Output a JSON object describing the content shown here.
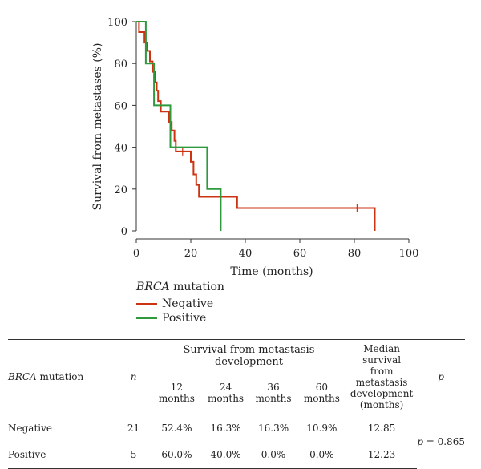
{
  "chart_data": {
    "type": "line",
    "subtype": "kaplan-meier",
    "xlabel": "Time (months)",
    "ylabel": "Survival from metastases (%)",
    "xlim": [
      0,
      100
    ],
    "ylim": [
      0,
      100
    ],
    "xticks": [
      0,
      20,
      40,
      60,
      80,
      100
    ],
    "yticks": [
      0,
      20,
      40,
      60,
      80,
      100
    ],
    "legend": {
      "title_italic": "BRCA",
      "title_rest": " mutation",
      "placement": "bottom-left"
    },
    "series": [
      {
        "name": "Negative",
        "color": "#cc3311",
        "steps": [
          [
            0,
            100
          ],
          [
            1,
            95
          ],
          [
            3,
            90
          ],
          [
            4,
            86
          ],
          [
            5,
            81
          ],
          [
            6,
            76
          ],
          [
            7,
            71
          ],
          [
            7.5,
            67
          ],
          [
            8,
            62
          ],
          [
            9,
            57
          ],
          [
            12,
            52
          ],
          [
            13,
            48
          ],
          [
            14,
            43
          ],
          [
            14.5,
            38
          ],
          [
            20,
            33
          ],
          [
            21,
            27
          ],
          [
            22,
            22
          ],
          [
            23,
            16.3
          ],
          [
            37,
            10.9
          ],
          [
            87.5,
            10.9
          ],
          [
            87.5,
            0
          ]
        ],
        "censor": [
          [
            17,
            38
          ],
          [
            81,
            10.9
          ]
        ]
      },
      {
        "name": "Positive",
        "color": "#2e9a3c",
        "steps": [
          [
            0,
            100
          ],
          [
            3.5,
            80
          ],
          [
            6.5,
            60
          ],
          [
            12.5,
            40
          ],
          [
            26,
            20
          ],
          [
            31,
            0
          ]
        ],
        "censor": []
      }
    ]
  },
  "table": {
    "col_mutation_italic": "BRCA",
    "col_mutation_rest": " mutation",
    "col_n": "n",
    "group_header": "Survival from metastasis development",
    "subheaders": [
      "12 months",
      "24 months",
      "36 months",
      "60 months"
    ],
    "median_header": [
      "Median survival",
      "from metastasis",
      "development",
      "(months)"
    ],
    "col_p": "p",
    "rows": [
      {
        "label": "Negative",
        "n": "21",
        "vals": [
          "52.4%",
          "16.3%",
          "16.3%",
          "10.9%"
        ],
        "median": "12.85"
      },
      {
        "label": "Positive",
        "n": "5",
        "vals": [
          "60.0%",
          "40.0%",
          "0.0%",
          "0.0%"
        ],
        "median": "12.23"
      }
    ],
    "p_label": "p",
    "p_value": " = 0.865"
  }
}
